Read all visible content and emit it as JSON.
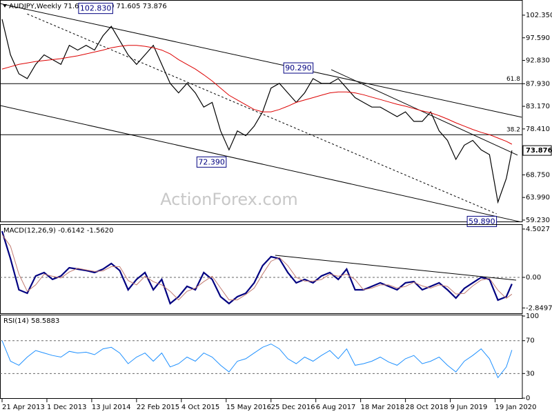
{
  "chart_data": [
    {
      "type": "line",
      "title": "AUDJPY,Weekly  71.656 74.010 71.605 73.876",
      "watermark": "ActionForex.com",
      "ylim": [
        58.79,
        105.54
      ],
      "yticks": [
        {
          "value": 102.35,
          "label": "102.350"
        },
        {
          "value": 97.59,
          "label": "97.590"
        },
        {
          "value": 92.83,
          "label": "92.830"
        },
        {
          "value": 87.93,
          "label": "87.930"
        },
        {
          "value": 83.17,
          "label": "83.170"
        },
        {
          "value": 78.41,
          "label": "78.410"
        },
        {
          "value": 68.75,
          "label": "68.750"
        },
        {
          "value": 63.99,
          "label": "63.990"
        },
        {
          "value": 59.23,
          "label": "59.230"
        }
      ],
      "last_price": {
        "value": 73.876,
        "label": "73.876"
      },
      "x": [
        0,
        6,
        12,
        18,
        24,
        30,
        36,
        42,
        48,
        54,
        60,
        66,
        72,
        78,
        84,
        90,
        96,
        102,
        108,
        114,
        120,
        126,
        132,
        138,
        144,
        150,
        156,
        162,
        168,
        174,
        180,
        186,
        192,
        198,
        204,
        210,
        216,
        222,
        228,
        234,
        240,
        246,
        252,
        258,
        264,
        270,
        276,
        282,
        288,
        294,
        300,
        306,
        312,
        318,
        324,
        330,
        336,
        342,
        348,
        354,
        360,
        364
      ],
      "series": [
        {
          "name": "Close",
          "color": "#000000",
          "values": [
            101.5,
            94,
            90,
            89,
            92,
            94,
            93,
            92,
            96,
            95,
            96,
            95,
            98,
            100,
            97,
            94,
            92,
            94,
            96,
            92,
            88,
            86,
            88,
            86,
            83,
            84,
            78,
            74,
            78,
            77,
            79,
            82,
            87,
            88,
            86,
            84,
            86,
            89,
            88,
            88,
            89,
            87,
            85,
            84,
            83,
            83,
            82,
            81,
            82,
            80,
            80,
            82,
            78,
            76,
            72,
            75,
            76,
            74,
            73,
            63,
            68,
            73.876
          ]
        },
        {
          "name": "MA",
          "color": "#dd0000",
          "values": [
            91,
            91.5,
            92,
            92.3,
            92.6,
            92.8,
            93,
            93.2,
            93.5,
            93.8,
            94.2,
            94.6,
            95,
            95.5,
            95.8,
            96,
            96,
            95.8,
            95.5,
            95,
            94.2,
            93,
            92,
            91,
            89.8,
            88.5,
            87,
            85.5,
            84.5,
            83.5,
            82.5,
            82,
            82,
            82.5,
            83.2,
            84,
            84.5,
            85,
            85.5,
            86,
            86.2,
            86.2,
            86,
            85.6,
            85.1,
            84.6,
            84.1,
            83.6,
            83.2,
            82.7,
            82.2,
            81.8,
            81.2,
            80.5,
            79.7,
            79,
            78.3,
            77.7,
            77.2,
            76.5,
            75.8,
            75.2
          ]
        }
      ],
      "levels": [
        {
          "ratio": 61.8,
          "value": 87.93
        },
        {
          "ratio": 38.2,
          "value": 77.2
        }
      ],
      "trendlines": [
        {
          "x": [
            -1.5,
            371
          ],
          "values": [
            104.8,
            80.87
          ],
          "dashed": false
        },
        {
          "x": [
            -1.5,
            371
          ],
          "values": [
            83.34,
            58.8
          ],
          "dashed": false
        },
        {
          "x": [
            18,
            353
          ],
          "values": [
            102.6,
            60.55
          ],
          "dashed": true
        },
        {
          "x": [
            235,
            368
          ],
          "values": [
            90.88,
            72.9
          ],
          "dashed": false
        }
      ],
      "annotations": [
        {
          "x": 80,
          "value": 102.83,
          "label": "102.830"
        },
        {
          "x": 223,
          "value": 90.29,
          "label": "90.290"
        },
        {
          "x": 161,
          "value": 72.39,
          "label": "72.390"
        },
        {
          "x": 354,
          "value": 59.89,
          "label": "59.890"
        }
      ]
    },
    {
      "type": "line",
      "title": "MACD(12,26,9) -0.6142 -1.5620",
      "ylim": [
        -3.41,
        4.95
      ],
      "yticks": [
        4.5027,
        {
          "value": 0,
          "label": "0.00"
        },
        -2.8497
      ],
      "reference_lines": [
        0
      ],
      "x": [
        0,
        6,
        12,
        18,
        24,
        30,
        36,
        42,
        48,
        54,
        60,
        66,
        72,
        78,
        84,
        90,
        96,
        102,
        108,
        114,
        120,
        126,
        132,
        138,
        144,
        150,
        156,
        162,
        168,
        174,
        180,
        186,
        192,
        198,
        204,
        210,
        216,
        222,
        228,
        234,
        240,
        246,
        252,
        258,
        264,
        270,
        276,
        282,
        288,
        294,
        300,
        306,
        312,
        318,
        324,
        330,
        336,
        342,
        348,
        354,
        360,
        364
      ],
      "series": [
        {
          "name": "MACD",
          "color": "#000080",
          "values": [
            4.31,
            1.74,
            -1.16,
            -1.48,
            0.13,
            0.45,
            -0.19,
            0.13,
            0.9,
            0.77,
            0.64,
            0.45,
            0.77,
            1.29,
            0.64,
            -1.16,
            -0.19,
            0.45,
            -1.16,
            -0.19,
            -2.44,
            -1.8,
            -0.84,
            -1.16,
            0.45,
            -0.19,
            -1.8,
            -2.44,
            -1.8,
            -1.48,
            -0.51,
            1.09,
            1.93,
            1.74,
            0.45,
            -0.51,
            -0.19,
            -0.51,
            0.13,
            0.45,
            -0.19,
            0.77,
            -1.16,
            -1.16,
            -0.84,
            -0.51,
            -0.84,
            -1.16,
            -0.51,
            -0.39,
            -1.16,
            -0.84,
            -0.51,
            -1.16,
            -1.93,
            -1.03,
            -0.51,
            0,
            -0.19,
            -2.12,
            -1.8,
            -0.6142
          ]
        },
        {
          "name": "Signal",
          "color": "#c07a70",
          "values": [
            4.0,
            2.9,
            0.3,
            -1.3,
            -0.7,
            0.3,
            0.1,
            -0.05,
            0.5,
            0.85,
            0.7,
            0.55,
            0.6,
            1.0,
            1.0,
            -0.3,
            -0.7,
            0.1,
            -0.4,
            -0.7,
            -1.3,
            -2.1,
            -1.3,
            -1.0,
            -0.4,
            0.1,
            -1.0,
            -2.1,
            -2.1,
            -1.6,
            -1.0,
            0.3,
            1.5,
            1.85,
            1.1,
            0.0,
            -0.35,
            -0.35,
            -0.2,
            0.3,
            0.1,
            0.3,
            -0.2,
            -1.16,
            -1.0,
            -0.7,
            -0.7,
            -1.0,
            -0.85,
            -0.45,
            -0.8,
            -1.0,
            -0.7,
            -0.85,
            -1.55,
            -1.5,
            -0.8,
            -0.25,
            -0.1,
            -1.2,
            -1.95,
            -1.562
          ]
        }
      ],
      "trendlines": [
        {
          "x": [
            195,
            367
          ],
          "values": [
            2.06,
            -0.26
          ],
          "dashed": false
        }
      ]
    },
    {
      "type": "line",
      "title": "RSI(14) 58.5883",
      "ylim": [
        -0.8,
        101.7
      ],
      "yticks": [
        100,
        70,
        30,
        0
      ],
      "reference_lines": [
        70,
        30
      ],
      "x": [
        0,
        6,
        12,
        18,
        24,
        30,
        36,
        42,
        48,
        54,
        60,
        66,
        72,
        78,
        84,
        90,
        96,
        102,
        108,
        114,
        120,
        126,
        132,
        138,
        144,
        150,
        156,
        162,
        168,
        174,
        180,
        186,
        192,
        198,
        204,
        210,
        216,
        222,
        228,
        234,
        240,
        246,
        252,
        258,
        264,
        270,
        276,
        282,
        288,
        294,
        300,
        306,
        312,
        318,
        324,
        330,
        336,
        342,
        348,
        354,
        360,
        364
      ],
      "series": [
        {
          "name": "RSI",
          "color": "#1e90ff",
          "values": [
            70,
            45,
            40,
            50,
            58,
            55,
            52,
            50,
            57,
            55,
            56,
            53,
            60,
            62,
            55,
            42,
            50,
            55,
            45,
            55,
            38,
            42,
            50,
            45,
            55,
            50,
            40,
            32,
            45,
            48,
            55,
            62,
            66,
            60,
            48,
            42,
            50,
            45,
            52,
            58,
            48,
            60,
            40,
            42,
            45,
            50,
            44,
            40,
            48,
            52,
            42,
            45,
            50,
            40,
            32,
            45,
            52,
            60,
            48,
            25,
            38,
            58.5883
          ]
        }
      ],
      "xticks": [
        {
          "value": 0,
          "label": "21 Apr 2013"
        },
        {
          "value": 32,
          "label": "1 Dec 2013"
        },
        {
          "value": 64,
          "label": "13 Jul 2014"
        },
        {
          "value": 96,
          "label": "22 Feb 2015"
        },
        {
          "value": 128,
          "label": "4 Oct 2015"
        },
        {
          "value": 160,
          "label": "15 May 2016"
        },
        {
          "value": 192,
          "label": "25 Dec 2016"
        },
        {
          "value": 224,
          "label": "6 Aug 2017"
        },
        {
          "value": 256,
          "label": "18 Mar 2018"
        },
        {
          "value": 288,
          "label": "28 Oct 2018"
        },
        {
          "value": 320,
          "label": "9 Jun 2019"
        },
        {
          "value": 352,
          "label": "19 Jan 2020"
        }
      ]
    }
  ]
}
